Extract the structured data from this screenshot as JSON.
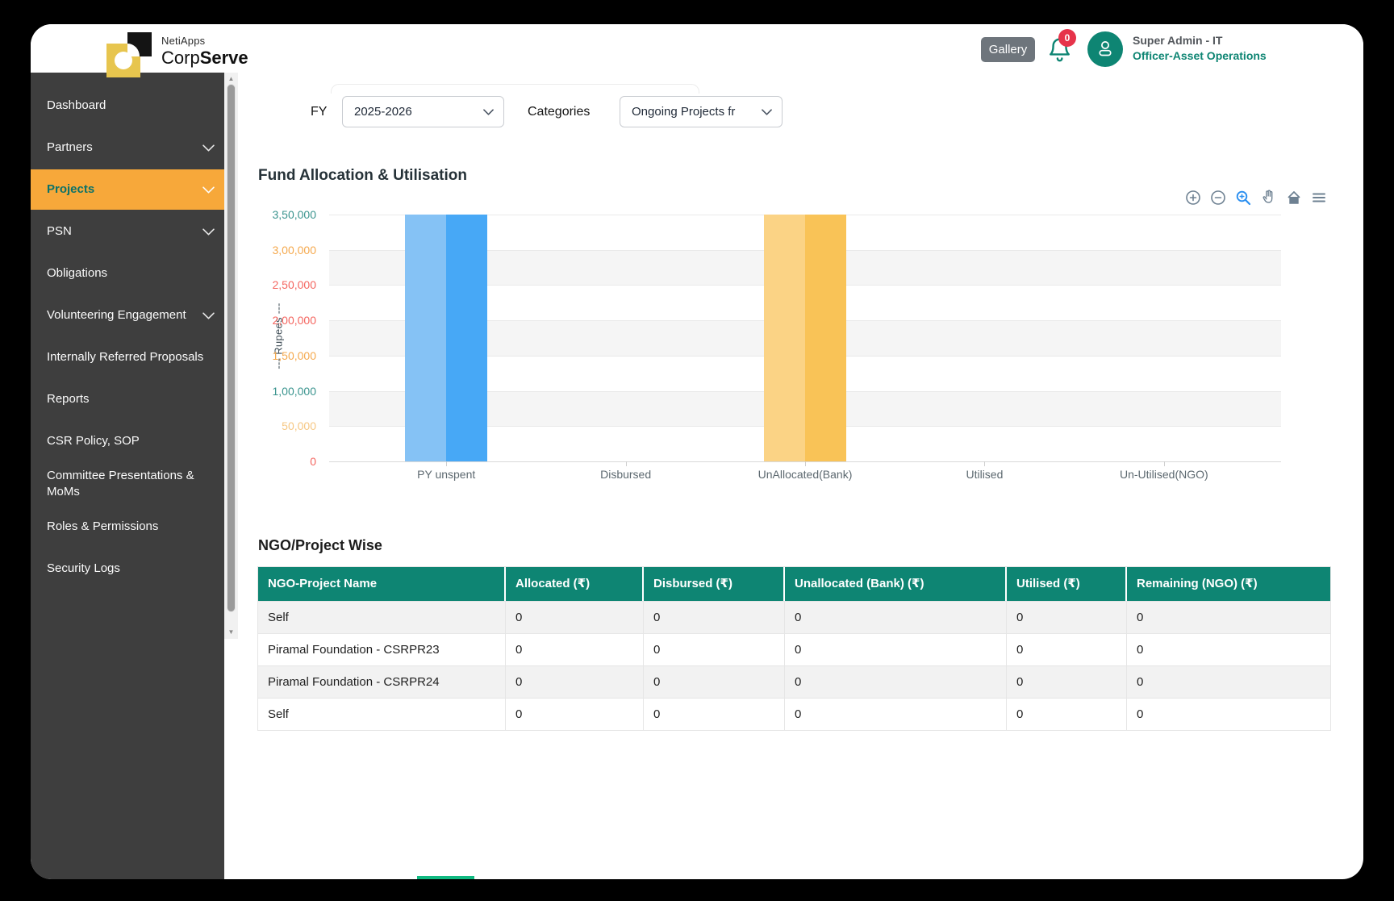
{
  "colors": {
    "brand_teal": "#0E8573",
    "sidebar_bg": "#3E3E3E",
    "active_item_bg": "#F7A83A",
    "active_item_text": "#0C7268",
    "badge_red": "#E6334A",
    "gallery_gray": "#6E757C",
    "band_gray": "#F5F5F5"
  },
  "header": {
    "brand_name": "NetiApps",
    "brand_product_regular": "Corp",
    "brand_product_bold": "Serve",
    "gallery_button": "Gallery",
    "notification_count": "0",
    "user_name": "Super Admin - IT",
    "user_role": "Officer-Asset Operations"
  },
  "sidebar": {
    "items": [
      {
        "label": "Dashboard",
        "chevron": false,
        "active": false
      },
      {
        "label": "Partners",
        "chevron": true,
        "active": false
      },
      {
        "label": "Projects",
        "chevron": true,
        "active": true
      },
      {
        "label": "PSN",
        "chevron": true,
        "active": false
      },
      {
        "label": "Obligations",
        "chevron": false,
        "active": false
      },
      {
        "label": "Volunteering Engagement",
        "chevron": true,
        "active": false
      },
      {
        "label": "Internally Referred Proposals",
        "chevron": false,
        "active": false
      },
      {
        "label": "Reports",
        "chevron": false,
        "active": false
      },
      {
        "label": "CSR Policy, SOP",
        "chevron": false,
        "active": false
      },
      {
        "label": "Committee Presentations & MoMs",
        "chevron": false,
        "active": false
      },
      {
        "label": "Roles & Permissions",
        "chevron": false,
        "active": false
      },
      {
        "label": "Security Logs",
        "chevron": false,
        "active": false
      }
    ]
  },
  "filters": {
    "fy_label": "FY",
    "fy_value": "2025-2026",
    "categories_label": "Categories",
    "categories_value": "Ongoing Projects fr"
  },
  "chart": {
    "title": "Fund Allocation & Utilisation",
    "toolbar": [
      "zoom-in",
      "zoom-out",
      "selection-zoom",
      "pan",
      "home",
      "menu"
    ],
    "chart_data": {
      "type": "bar",
      "categories": [
        "PY unspent",
        "Disbursed",
        "UnAllocated(Bank)",
        "Utilised",
        "Un-Utilised(NGO)"
      ],
      "series": [
        {
          "name": "light-shade",
          "values": [
            350000,
            0,
            350000,
            0,
            0
          ]
        },
        {
          "name": "dark-shade",
          "values": [
            350000,
            0,
            350000,
            0,
            0
          ]
        }
      ],
      "category_colors": [
        {
          "light": "#85C2F5",
          "dark": "#47A8F6"
        },
        null,
        {
          "light": "#FBD385",
          "dark": "#F9C357"
        },
        null,
        null
      ],
      "ylabel": "--- Rupees ---",
      "ylim": [
        0,
        350000
      ],
      "yticks": [
        {
          "label": "3,50,000",
          "color": "#3A948E"
        },
        {
          "label": "3,00,000",
          "color": "#F5A94E"
        },
        {
          "label": "2,50,000",
          "color": "#F4655F"
        },
        {
          "label": "2,00,000",
          "color": "#F4655F"
        },
        {
          "label": "1,50,000",
          "color": "#F5A94E"
        },
        {
          "label": "1,00,000",
          "color": "#3A948E"
        },
        {
          "label": "50,000",
          "color": "#F6C783"
        },
        {
          "label": "0",
          "color": "#F4655F"
        }
      ],
      "grid": "alternating-horizontal-bands",
      "legend": "none"
    }
  },
  "table": {
    "title": "NGO/Project Wise",
    "columns": [
      "NGO-Project Name",
      "Allocated (₹)",
      "Disbursed (₹)",
      "Unallocated (Bank) (₹)",
      "Utilised (₹)",
      "Remaining (NGO) (₹)"
    ],
    "rows": [
      [
        "Self",
        "0",
        "0",
        "0",
        "0",
        "0"
      ],
      [
        "Piramal Foundation - CSRPR23",
        "0",
        "0",
        "0",
        "0",
        "0"
      ],
      [
        "Piramal Foundation - CSRPR24",
        "0",
        "0",
        "0",
        "0",
        "0"
      ],
      [
        "Self",
        "0",
        "0",
        "0",
        "0",
        "0"
      ]
    ]
  }
}
